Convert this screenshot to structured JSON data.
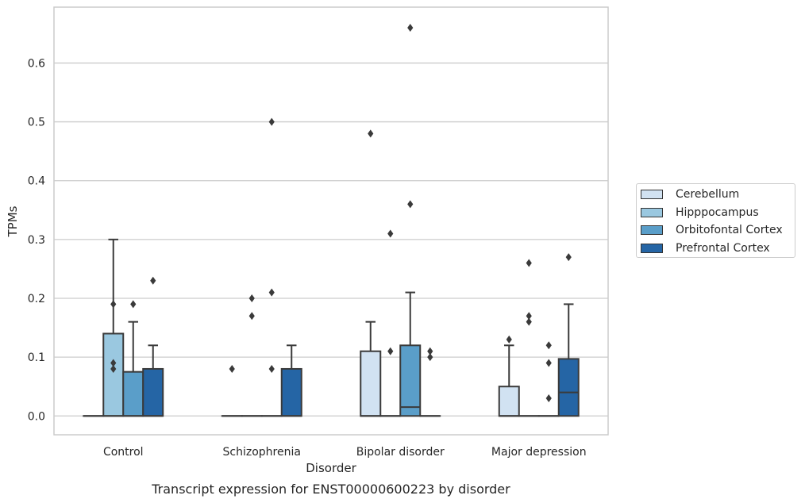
{
  "chart_data": {
    "type": "box",
    "xlabel": "Disorder",
    "ylabel": "TPMs",
    "caption": "Transcript expression for ENST00000600223 by disorder",
    "ylim": [
      -0.032,
      0.695
    ],
    "yticks": [
      "0.0",
      "0.1",
      "0.2",
      "0.3",
      "0.4",
      "0.5",
      "0.6"
    ],
    "grid": "horizontal",
    "legend_position": "right",
    "categories": [
      "Control",
      "Schizophrenia",
      "Bipolar disorder",
      "Major depression"
    ],
    "series": [
      {
        "name": "Cerebellum",
        "color": "#d1e2f2",
        "boxes": [
          {
            "q1": 0,
            "median": 0,
            "q3": 0,
            "whisker_low": 0,
            "whisker_high": 0,
            "outliers": []
          },
          {
            "q1": 0,
            "median": 0,
            "q3": 0,
            "whisker_low": 0,
            "whisker_high": 0,
            "outliers": [
              0.08
            ]
          },
          {
            "q1": 0,
            "median": 0,
            "q3": 0.11,
            "whisker_low": 0,
            "whisker_high": 0.16,
            "outliers": [
              0.48
            ]
          },
          {
            "q1": 0,
            "median": 0,
            "q3": 0.05,
            "whisker_low": 0,
            "whisker_high": 0.12,
            "outliers": [
              0.13
            ]
          }
        ]
      },
      {
        "name": "Hipppocampus",
        "color": "#9ac8e0",
        "boxes": [
          {
            "q1": 0,
            "median": 0,
            "q3": 0.14,
            "whisker_low": 0,
            "whisker_high": 0.3,
            "outliers": [
              0.08,
              0.09,
              0.19
            ]
          },
          {
            "q1": 0,
            "median": 0,
            "q3": 0,
            "whisker_low": 0,
            "whisker_high": 0,
            "outliers": [
              0.17,
              0.2
            ]
          },
          {
            "q1": 0,
            "median": 0,
            "q3": 0,
            "whisker_low": 0,
            "whisker_high": 0,
            "outliers": [
              0.11,
              0.31
            ]
          },
          {
            "q1": 0,
            "median": 0,
            "q3": 0,
            "whisker_low": 0,
            "whisker_high": 0,
            "outliers": [
              0.16,
              0.17,
              0.26
            ]
          }
        ]
      },
      {
        "name": "Orbitofontal Cortex",
        "color": "#5a9ec9",
        "boxes": [
          {
            "q1": 0,
            "median": 0,
            "q3": 0.075,
            "whisker_low": 0,
            "whisker_high": 0.16,
            "outliers": [
              0.19
            ]
          },
          {
            "q1": 0,
            "median": 0,
            "q3": 0,
            "whisker_low": 0,
            "whisker_high": 0,
            "outliers": [
              0.08,
              0.21,
              0.5
            ]
          },
          {
            "q1": 0,
            "median": 0.015,
            "q3": 0.12,
            "whisker_low": 0,
            "whisker_high": 0.21,
            "outliers": [
              0.36,
              0.66
            ]
          },
          {
            "q1": 0,
            "median": 0,
            "q3": 0,
            "whisker_low": 0,
            "whisker_high": 0,
            "outliers": [
              0.03,
              0.09,
              0.12
            ]
          }
        ]
      },
      {
        "name": "Prefrontal Cortex",
        "color": "#2565a5",
        "boxes": [
          {
            "q1": 0,
            "median": 0,
            "q3": 0.08,
            "whisker_low": 0,
            "whisker_high": 0.12,
            "outliers": [
              0.23
            ]
          },
          {
            "q1": 0,
            "median": 0,
            "q3": 0.08,
            "whisker_low": 0,
            "whisker_high": 0.12,
            "outliers": []
          },
          {
            "q1": 0,
            "median": 0,
            "q3": 0,
            "whisker_low": 0,
            "whisker_high": 0,
            "outliers": [
              0.1,
              0.11
            ]
          },
          {
            "q1": 0,
            "median": 0.04,
            "q3": 0.097,
            "whisker_low": 0,
            "whisker_high": 0.19,
            "outliers": [
              0.27
            ]
          }
        ]
      }
    ]
  }
}
